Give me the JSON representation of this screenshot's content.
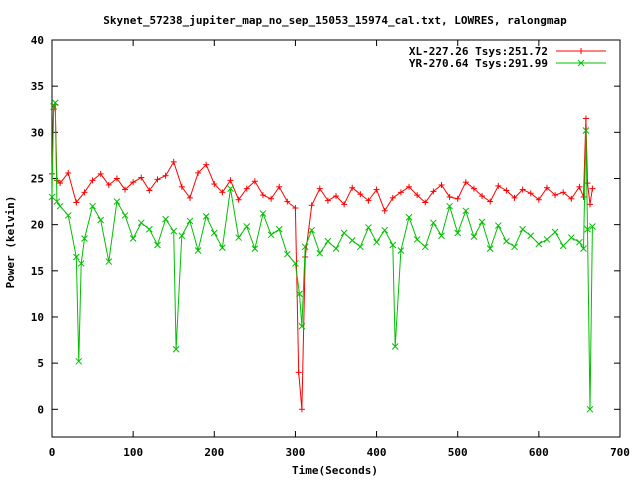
{
  "chart_data": {
    "type": "line",
    "title": "Skynet_57238_jupiter_map_no_sep_15053_15974_cal.txt, LOWRES, ralongmap",
    "xlabel": "Time(Seconds)",
    "ylabel": "Power (kelvin)",
    "xlim": [
      0,
      700
    ],
    "ylim": [
      -3,
      40
    ],
    "xticks": [
      0,
      100,
      200,
      300,
      400,
      500,
      600,
      700
    ],
    "yticks": [
      0,
      5,
      10,
      15,
      20,
      25,
      30,
      35,
      40
    ],
    "legend_position": "top-right",
    "grid": false,
    "series": [
      {
        "name": "XL-227.26 Tsys:251.72",
        "color": "#ff0000",
        "marker": "+",
        "x": [
          0,
          2,
          4,
          6,
          10,
          20,
          30,
          40,
          50,
          60,
          70,
          80,
          90,
          100,
          110,
          120,
          130,
          140,
          150,
          160,
          170,
          180,
          190,
          200,
          210,
          220,
          230,
          240,
          250,
          260,
          270,
          280,
          290,
          300,
          304,
          308,
          312,
          320,
          330,
          340,
          350,
          360,
          370,
          380,
          390,
          400,
          410,
          420,
          430,
          440,
          450,
          460,
          470,
          480,
          490,
          500,
          510,
          520,
          530,
          540,
          550,
          560,
          570,
          580,
          590,
          600,
          610,
          620,
          630,
          640,
          650,
          655,
          658,
          660,
          663,
          666
        ],
        "y": [
          25.5,
          32.5,
          33.0,
          24.8,
          24.5,
          25.6,
          22.4,
          23.5,
          24.8,
          25.5,
          24.3,
          25.0,
          23.8,
          24.6,
          25.1,
          23.7,
          24.9,
          25.3,
          26.8,
          24.1,
          22.9,
          25.6,
          26.5,
          24.4,
          23.5,
          24.8,
          22.7,
          23.9,
          24.7,
          23.2,
          22.8,
          24.1,
          22.5,
          21.8,
          4.0,
          0.0,
          16.5,
          22.1,
          23.9,
          22.6,
          23.1,
          22.2,
          24.0,
          23.3,
          22.6,
          23.8,
          21.5,
          22.9,
          23.5,
          24.1,
          23.2,
          22.4,
          23.6,
          24.3,
          23.0,
          22.8,
          24.6,
          23.9,
          23.1,
          22.5,
          24.2,
          23.7,
          22.9,
          23.8,
          23.4,
          22.7,
          24.0,
          23.2,
          23.5,
          22.8,
          24.1,
          23.0,
          31.5,
          24.5,
          22.2,
          23.9
        ]
      },
      {
        "name": "YR-270.64 Tsys:291.99",
        "color": "#00c000",
        "marker": "x",
        "x": [
          0,
          2,
          4,
          6,
          10,
          20,
          30,
          33,
          36,
          40,
          50,
          60,
          70,
          80,
          90,
          100,
          110,
          120,
          130,
          140,
          150,
          153,
          160,
          170,
          180,
          190,
          200,
          210,
          220,
          230,
          240,
          250,
          260,
          270,
          280,
          290,
          300,
          305,
          308,
          312,
          320,
          330,
          340,
          350,
          360,
          370,
          380,
          390,
          400,
          410,
          420,
          423,
          430,
          440,
          450,
          460,
          470,
          480,
          490,
          500,
          510,
          520,
          530,
          540,
          550,
          560,
          570,
          580,
          590,
          600,
          610,
          620,
          630,
          640,
          650,
          655,
          658,
          660,
          663,
          666
        ],
        "y": [
          23.0,
          32.8,
          33.2,
          22.5,
          22.0,
          21.0,
          16.5,
          5.2,
          15.8,
          18.5,
          22.0,
          20.5,
          16.0,
          22.5,
          21.0,
          18.5,
          20.2,
          19.5,
          17.8,
          20.6,
          19.3,
          6.5,
          18.8,
          20.4,
          17.2,
          20.9,
          19.1,
          17.5,
          23.9,
          18.6,
          19.8,
          17.4,
          21.2,
          18.9,
          19.5,
          16.8,
          15.8,
          12.5,
          9.0,
          17.6,
          19.4,
          16.9,
          18.2,
          17.4,
          19.1,
          18.3,
          17.6,
          19.7,
          18.1,
          19.4,
          17.8,
          6.8,
          17.2,
          20.8,
          18.4,
          17.6,
          20.2,
          18.8,
          22.0,
          19.1,
          21.5,
          18.7,
          20.3,
          17.4,
          19.9,
          18.2,
          17.6,
          19.5,
          18.8,
          17.9,
          18.4,
          19.2,
          17.7,
          18.6,
          18.1,
          17.4,
          30.2,
          19.5,
          0.0,
          19.8
        ]
      }
    ]
  }
}
